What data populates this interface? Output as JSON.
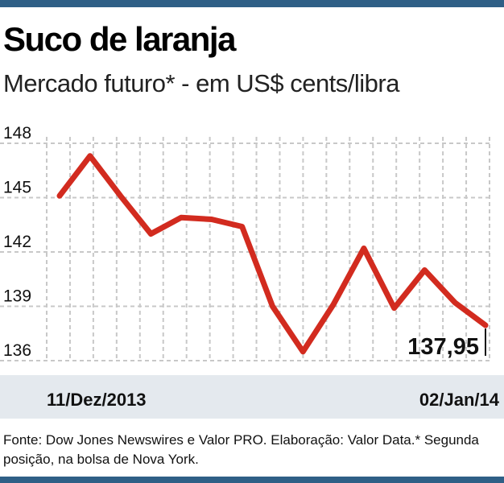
{
  "header": {
    "title": "Suco de laranja",
    "subtitle": "Mercado futuro* - em US$ cents/libra"
  },
  "colors": {
    "line": "#d22b1f",
    "grid": "#c8c8c8",
    "accent_bar": "#2f5f86",
    "axis_band": "#e4e9ee"
  },
  "chart_data": {
    "type": "line",
    "title": "Suco de laranja",
    "subtitle": "Mercado futuro* - em US$ cents/libra",
    "ylabel": "",
    "xlabel": "",
    "ylim": [
      136,
      148
    ],
    "yticks": [
      "148",
      "145",
      "142",
      "139",
      "136"
    ],
    "grid": true,
    "x_start_label": "11/Dez/2013",
    "x_end_label": "02/Jan/14",
    "series": [
      {
        "values": [
          145.1,
          147.3,
          145.1,
          143.0,
          143.9,
          143.8,
          143.4,
          139.0,
          136.5,
          139.1,
          142.2,
          138.9,
          141.0,
          139.2,
          137.95
        ]
      }
    ],
    "last_value_label": "137,95"
  },
  "footer": {
    "source": "Fonte: Dow Jones Newswires e Valor PRO. Elaboração: Valor Data.* Segunda posição, na bolsa de Nova York."
  }
}
